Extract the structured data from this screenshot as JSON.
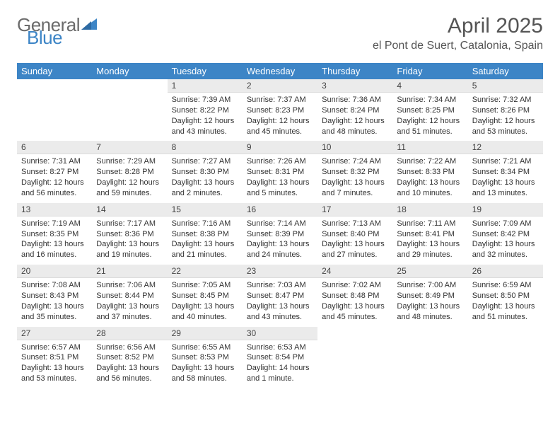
{
  "brand": {
    "part1": "General",
    "part2": "Blue"
  },
  "title": "April 2025",
  "location": "el Pont de Suert, Catalonia, Spain",
  "weekdays": [
    "Sunday",
    "Monday",
    "Tuesday",
    "Wednesday",
    "Thursday",
    "Friday",
    "Saturday"
  ],
  "colors": {
    "header_bg": "#3d85c6",
    "header_text": "#ffffff",
    "daybar_bg": "#ebebeb",
    "text": "#333333",
    "brand_gray": "#6b6b6b",
    "brand_blue": "#3d85c6"
  },
  "weeks": [
    [
      null,
      null,
      {
        "n": "1",
        "sunrise": "7:39 AM",
        "sunset": "8:22 PM",
        "daylight": "12 hours and 43 minutes."
      },
      {
        "n": "2",
        "sunrise": "7:37 AM",
        "sunset": "8:23 PM",
        "daylight": "12 hours and 45 minutes."
      },
      {
        "n": "3",
        "sunrise": "7:36 AM",
        "sunset": "8:24 PM",
        "daylight": "12 hours and 48 minutes."
      },
      {
        "n": "4",
        "sunrise": "7:34 AM",
        "sunset": "8:25 PM",
        "daylight": "12 hours and 51 minutes."
      },
      {
        "n": "5",
        "sunrise": "7:32 AM",
        "sunset": "8:26 PM",
        "daylight": "12 hours and 53 minutes."
      }
    ],
    [
      {
        "n": "6",
        "sunrise": "7:31 AM",
        "sunset": "8:27 PM",
        "daylight": "12 hours and 56 minutes."
      },
      {
        "n": "7",
        "sunrise": "7:29 AM",
        "sunset": "8:28 PM",
        "daylight": "12 hours and 59 minutes."
      },
      {
        "n": "8",
        "sunrise": "7:27 AM",
        "sunset": "8:30 PM",
        "daylight": "13 hours and 2 minutes."
      },
      {
        "n": "9",
        "sunrise": "7:26 AM",
        "sunset": "8:31 PM",
        "daylight": "13 hours and 5 minutes."
      },
      {
        "n": "10",
        "sunrise": "7:24 AM",
        "sunset": "8:32 PM",
        "daylight": "13 hours and 7 minutes."
      },
      {
        "n": "11",
        "sunrise": "7:22 AM",
        "sunset": "8:33 PM",
        "daylight": "13 hours and 10 minutes."
      },
      {
        "n": "12",
        "sunrise": "7:21 AM",
        "sunset": "8:34 PM",
        "daylight": "13 hours and 13 minutes."
      }
    ],
    [
      {
        "n": "13",
        "sunrise": "7:19 AM",
        "sunset": "8:35 PM",
        "daylight": "13 hours and 16 minutes."
      },
      {
        "n": "14",
        "sunrise": "7:17 AM",
        "sunset": "8:36 PM",
        "daylight": "13 hours and 19 minutes."
      },
      {
        "n": "15",
        "sunrise": "7:16 AM",
        "sunset": "8:38 PM",
        "daylight": "13 hours and 21 minutes."
      },
      {
        "n": "16",
        "sunrise": "7:14 AM",
        "sunset": "8:39 PM",
        "daylight": "13 hours and 24 minutes."
      },
      {
        "n": "17",
        "sunrise": "7:13 AM",
        "sunset": "8:40 PM",
        "daylight": "13 hours and 27 minutes."
      },
      {
        "n": "18",
        "sunrise": "7:11 AM",
        "sunset": "8:41 PM",
        "daylight": "13 hours and 29 minutes."
      },
      {
        "n": "19",
        "sunrise": "7:09 AM",
        "sunset": "8:42 PM",
        "daylight": "13 hours and 32 minutes."
      }
    ],
    [
      {
        "n": "20",
        "sunrise": "7:08 AM",
        "sunset": "8:43 PM",
        "daylight": "13 hours and 35 minutes."
      },
      {
        "n": "21",
        "sunrise": "7:06 AM",
        "sunset": "8:44 PM",
        "daylight": "13 hours and 37 minutes."
      },
      {
        "n": "22",
        "sunrise": "7:05 AM",
        "sunset": "8:45 PM",
        "daylight": "13 hours and 40 minutes."
      },
      {
        "n": "23",
        "sunrise": "7:03 AM",
        "sunset": "8:47 PM",
        "daylight": "13 hours and 43 minutes."
      },
      {
        "n": "24",
        "sunrise": "7:02 AM",
        "sunset": "8:48 PM",
        "daylight": "13 hours and 45 minutes."
      },
      {
        "n": "25",
        "sunrise": "7:00 AM",
        "sunset": "8:49 PM",
        "daylight": "13 hours and 48 minutes."
      },
      {
        "n": "26",
        "sunrise": "6:59 AM",
        "sunset": "8:50 PM",
        "daylight": "13 hours and 51 minutes."
      }
    ],
    [
      {
        "n": "27",
        "sunrise": "6:57 AM",
        "sunset": "8:51 PM",
        "daylight": "13 hours and 53 minutes."
      },
      {
        "n": "28",
        "sunrise": "6:56 AM",
        "sunset": "8:52 PM",
        "daylight": "13 hours and 56 minutes."
      },
      {
        "n": "29",
        "sunrise": "6:55 AM",
        "sunset": "8:53 PM",
        "daylight": "13 hours and 58 minutes."
      },
      {
        "n": "30",
        "sunrise": "6:53 AM",
        "sunset": "8:54 PM",
        "daylight": "14 hours and 1 minute."
      },
      null,
      null,
      null
    ]
  ],
  "labels": {
    "sunrise_prefix": "Sunrise: ",
    "sunset_prefix": "Sunset: ",
    "daylight_prefix": "Daylight: "
  }
}
